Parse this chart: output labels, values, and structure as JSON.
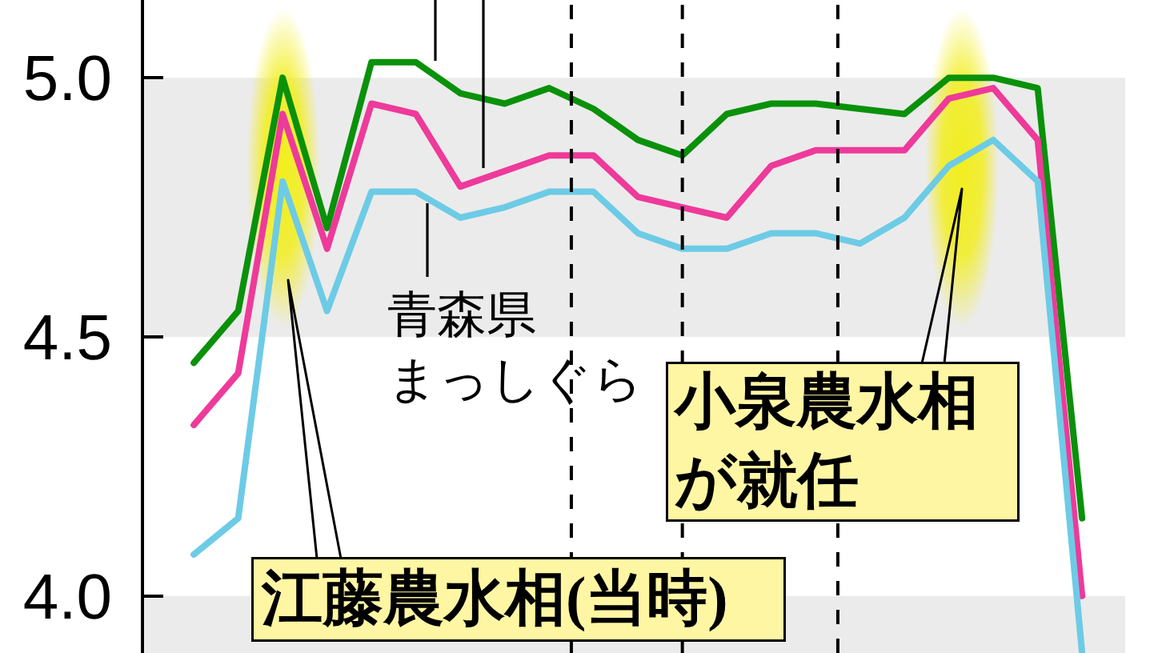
{
  "chart_data": {
    "type": "line",
    "categories": [
      null,
      null,
      null,
      null,
      null,
      null,
      null,
      null,
      null,
      null,
      null,
      null,
      null,
      null,
      null,
      null,
      null,
      null,
      null,
      null,
      null
    ],
    "series": [
      {
        "color": "#0a910a",
        "values": [
          4.45,
          4.55,
          5.0,
          4.71,
          5.03,
          5.03,
          4.97,
          4.95,
          4.98,
          4.94,
          4.88,
          4.85,
          4.93,
          4.95,
          4.95,
          4.94,
          4.93,
          5.0,
          5.0,
          4.98,
          4.15
        ]
      },
      {
        "color": "#ee3a9a",
        "values": [
          4.33,
          4.43,
          4.93,
          4.67,
          4.95,
          4.93,
          4.79,
          4.82,
          4.85,
          4.85,
          4.77,
          4.75,
          4.73,
          4.83,
          4.86,
          4.86,
          4.86,
          4.96,
          4.98,
          4.88,
          4.0
        ]
      },
      {
        "name": "青森県まっしぐら",
        "color": "#6dcbe6",
        "values": [
          4.08,
          4.15,
          4.8,
          4.55,
          4.78,
          4.78,
          4.73,
          4.75,
          4.78,
          4.78,
          4.7,
          4.67,
          4.67,
          4.7,
          4.7,
          4.68,
          4.73,
          4.83,
          4.88,
          4.8,
          3.89
        ]
      }
    ],
    "ylim": [
      3.89,
      5.15
    ],
    "yticks": [
      {
        "value": 4,
        "label": "4.0"
      },
      {
        "value": 4.5,
        "label": "4.5"
      },
      {
        "value": 5,
        "label": "5.0"
      }
    ],
    "tick_labels": "y",
    "bands": [
      {
        "axis": "y",
        "from": 4.5,
        "to": 5.0,
        "color": "#ebebeb"
      },
      {
        "axis": "y",
        "from": 3.89,
        "to": 4.0,
        "color": "#ebebeb"
      }
    ],
    "annotations": [
      "江藤農水相(当時)",
      "小泉農水相が就任"
    ]
  }
}
